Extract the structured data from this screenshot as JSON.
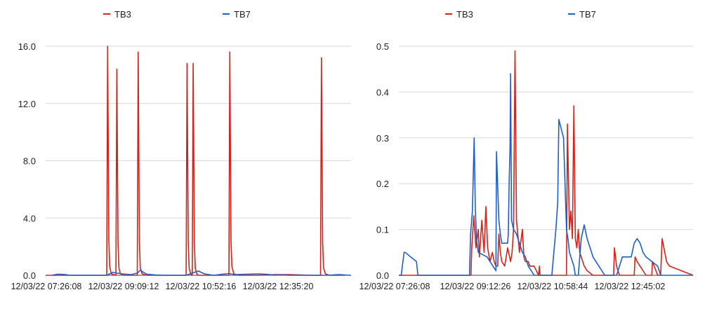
{
  "colors": {
    "tb3": "#d0241c",
    "tb7": "#1f5fc8",
    "grid": "#d9d9d9"
  },
  "chart_data": [
    {
      "type": "line",
      "legend_position": "top",
      "grid": true,
      "ylim": [
        0,
        16
      ],
      "y_ticks": [
        "0.0",
        "4.0",
        "8.0",
        "12.0",
        "16.0"
      ],
      "x_tick_labels": [
        "12/03/22 07:26:08",
        "12/03/22 09:09:12",
        "12/03/22 10:52:16",
        "12/03/22 12:35:20"
      ],
      "series": [
        {
          "name": "TB3",
          "color": "#d0241c",
          "x": [
            0.0,
            0.2,
            0.203,
            0.207,
            0.21,
            0.215,
            0.23,
            0.233,
            0.237,
            0.24,
            0.245,
            0.26,
            0.3,
            0.303,
            0.307,
            0.31,
            0.316,
            0.33,
            0.4,
            0.46,
            0.463,
            0.467,
            0.47,
            0.475,
            0.48,
            0.483,
            0.487,
            0.49,
            0.495,
            0.5,
            0.55,
            0.6,
            0.603,
            0.607,
            0.61,
            0.616,
            0.63,
            0.7,
            0.75,
            0.8,
            0.87,
            0.9,
            0.903,
            0.907,
            0.91,
            0.916,
            0.93,
            0.98
          ],
          "y": [
            0,
            0,
            16.0,
            2.5,
            0.6,
            0.1,
            0,
            14.4,
            2.2,
            0.5,
            0.1,
            0,
            0,
            15.6,
            2.4,
            0.5,
            0.1,
            0,
            0,
            0,
            14.8,
            2.3,
            0.5,
            0.1,
            0,
            14.8,
            2.3,
            0.5,
            0.1,
            0,
            0,
            0,
            15.6,
            2.4,
            0.6,
            0.1,
            0,
            0,
            0.05,
            0.05,
            0,
            0,
            15.2,
            2.3,
            0.5,
            0.1,
            0,
            0
          ]
        },
        {
          "name": "TB7",
          "color": "#1f5fc8",
          "x": [
            0.02,
            0.04,
            0.06,
            0.08,
            0.2,
            0.22,
            0.25,
            0.28,
            0.3,
            0.31,
            0.33,
            0.36,
            0.4,
            0.46,
            0.48,
            0.5,
            0.52,
            0.55,
            0.58,
            0.6,
            0.62,
            0.66,
            0.7,
            0.72,
            0.75,
            0.76,
            0.8,
            0.88,
            0.92,
            0.96,
            1.0
          ],
          "y": [
            0,
            0.08,
            0.06,
            0,
            0,
            0.2,
            0.1,
            0.05,
            0.15,
            0.35,
            0.08,
            0.02,
            0,
            0,
            0.15,
            0.3,
            0.1,
            0,
            0.08,
            0.12,
            0.05,
            0.08,
            0.1,
            0.08,
            0,
            0.03,
            0,
            0,
            0,
            0.05,
            0
          ]
        }
      ]
    },
    {
      "type": "line",
      "legend_position": "top",
      "grid": true,
      "ylim": [
        0,
        0.5
      ],
      "y_ticks": [
        "0.0",
        "0.1",
        "0.2",
        "0.3",
        "0.4",
        "0.5"
      ],
      "x_tick_labels": [
        "12/03/22 07:26:08",
        "12/03/22 09:12:26",
        "12/03/22 10:58:44",
        "12/03/22 12:45:02"
      ],
      "series": [
        {
          "name": "TB3",
          "color": "#d0241c",
          "x": [
            0.0,
            0.245,
            0.248,
            0.255,
            0.262,
            0.27,
            0.274,
            0.282,
            0.29,
            0.296,
            0.302,
            0.31,
            0.318,
            0.324,
            0.33,
            0.336,
            0.34,
            0.345,
            0.35,
            0.36,
            0.37,
            0.38,
            0.385,
            0.39,
            0.395,
            0.4,
            0.41,
            0.42,
            0.425,
            0.43,
            0.44,
            0.445,
            0.46,
            0.475,
            0.478,
            0.48,
            0.483,
            0.5,
            0.52,
            0.54,
            0.56,
            0.57,
            0.573,
            0.58,
            0.585,
            0.59,
            0.595,
            0.6,
            0.605,
            0.61,
            0.615,
            0.62,
            0.625,
            0.63,
            0.64,
            0.66,
            0.68,
            0.7,
            0.72,
            0.73,
            0.733,
            0.74,
            0.75,
            0.76,
            0.77,
            0.78,
            0.79,
            0.8,
            0.803,
            0.81,
            0.82,
            0.83,
            0.84,
            0.848,
            0.85,
            0.86,
            0.862,
            0.88,
            0.882,
            0.89,
            0.895,
            0.91,
            0.92,
            1.0
          ],
          "y": [
            0,
            0,
            0.06,
            0.13,
            0.06,
            0.1,
            0.04,
            0.12,
            0.05,
            0.15,
            0.06,
            0.03,
            0.05,
            0.03,
            0.02,
            0.02,
            0.09,
            0.05,
            0.03,
            0.02,
            0.06,
            0.03,
            0.05,
            0.1,
            0.49,
            0.12,
            0.05,
            0.1,
            0.04,
            0.03,
            0.03,
            0.02,
            0.02,
            0.0,
            0.02,
            0.0,
            0.0,
            0.0,
            0.0,
            0.0,
            0.0,
            0.0,
            0.33,
            0.1,
            0.14,
            0.08,
            0.37,
            0.08,
            0.06,
            0.1,
            0.05,
            0.04,
            0.03,
            0.02,
            0.01,
            0.0,
            0.0,
            0.0,
            0.0,
            0.0,
            0.06,
            0.02,
            0.0,
            0.0,
            0.0,
            0.0,
            0.0,
            0.0,
            0.04,
            0.03,
            0.02,
            0.01,
            0.0,
            0.0,
            0.0,
            0.0,
            0.03,
            0.0,
            0.0,
            0.0,
            0.08,
            0.03,
            0.02,
            0.0
          ]
        },
        {
          "name": "TB7",
          "color": "#1f5fc8",
          "x": [
            0.0,
            0.008,
            0.018,
            0.022,
            0.04,
            0.06,
            0.065,
            0.24,
            0.244,
            0.25,
            0.256,
            0.26,
            0.264,
            0.27,
            0.3,
            0.31,
            0.33,
            0.332,
            0.34,
            0.345,
            0.35,
            0.37,
            0.372,
            0.375,
            0.378,
            0.38,
            0.383,
            0.39,
            0.4,
            0.41,
            0.42,
            0.43,
            0.44,
            0.45,
            0.46,
            0.52,
            0.534,
            0.54,
            0.544,
            0.56,
            0.565,
            0.57,
            0.575,
            0.58,
            0.59,
            0.595,
            0.6,
            0.61,
            0.62,
            0.63,
            0.64,
            0.65,
            0.66,
            0.67,
            0.68,
            0.7,
            0.72,
            0.74,
            0.75,
            0.76,
            0.77,
            0.78,
            0.79,
            0.8,
            0.81,
            0.82,
            0.83,
            0.84,
            0.86,
            0.88,
            0.89,
            0.9,
            0.91,
            0.92,
            0.93,
            0.95,
            1.0
          ],
          "y": [
            0,
            0,
            0.05,
            0.05,
            0.04,
            0.03,
            0,
            0,
            0.09,
            0.14,
            0.3,
            0.15,
            0.08,
            0.05,
            0.04,
            0.03,
            0.01,
            0.27,
            0.12,
            0.09,
            0.07,
            0.07,
            0.09,
            0.2,
            0.28,
            0.44,
            0.12,
            0.1,
            0.09,
            0.07,
            0.05,
            0.04,
            0.02,
            0.01,
            0,
            0,
            0.1,
            0.16,
            0.34,
            0.3,
            0.2,
            0.1,
            0.08,
            0.05,
            0.03,
            0.02,
            0,
            0,
            0.08,
            0.11,
            0.08,
            0.06,
            0.04,
            0.03,
            0.02,
            0,
            0,
            0,
            0.02,
            0.04,
            0.04,
            0.04,
            0.04,
            0.07,
            0.08,
            0.07,
            0.05,
            0.04,
            0.03,
            0.02,
            0,
            0,
            0,
            0,
            0,
            0,
            0
          ]
        }
      ]
    }
  ]
}
